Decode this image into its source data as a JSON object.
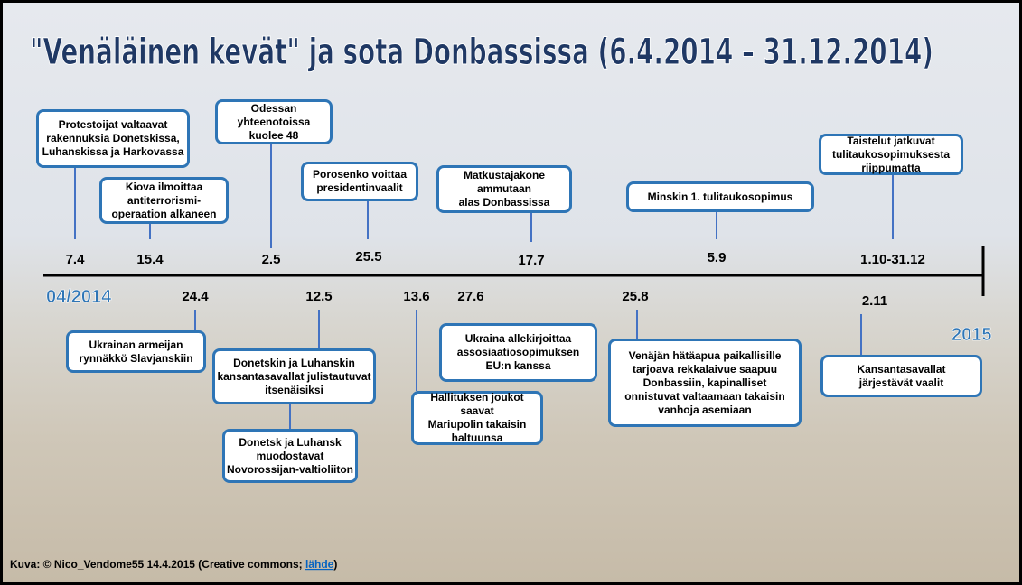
{
  "title": "\"Venäläinen kevät\" ja sota Donbassissa (6.4.2014 – 31.12.2014)",
  "timeline": {
    "start_label": "04/2014",
    "end_label": "2015"
  },
  "events": [
    {
      "date": "7.4",
      "text": [
        "Protestoijat valtaavat",
        "rakennuksia Donetskissa,",
        "Luhanskissa ja Harkovassa"
      ]
    },
    {
      "date": "15.4",
      "text": [
        "Kiova ilmoittaa",
        "antiterrorismi-",
        "operaation alkaneen"
      ]
    },
    {
      "date": "24.4",
      "text": [
        "Ukrainan armeijan",
        "rynnäkkö Slavjanskiin"
      ]
    },
    {
      "date": "2.5",
      "text": [
        "Odessan yhteenotoissa",
        "kuolee 48"
      ]
    },
    {
      "date": "12.5",
      "text": [
        "Donetskin ja Luhanskin",
        "kansantasavallat julistautuvat",
        "itsenäisiksi"
      ],
      "extra": [
        "Donetsk ja Luhansk",
        "muodostavat",
        "Novorossijan-valtioliiton"
      ]
    },
    {
      "date": "25.5",
      "text": [
        "Porosenko voittaa",
        "presidentinvaalit"
      ]
    },
    {
      "date": "13.6",
      "text": [
        "Hallituksen joukot saavat",
        "Mariupolin takaisin",
        "haltuunsa"
      ]
    },
    {
      "date": "27.6",
      "text": [
        "Ukraina allekirjoittaa",
        "assosiaatiosopimuksen",
        "EU:n kanssa"
      ]
    },
    {
      "date": "17.7",
      "text": [
        "Matkustajakone ammutaan",
        "alas Donbassissa"
      ]
    },
    {
      "date": "25.8",
      "text": [
        "Venäjän hätäapua paikallisille",
        "tarjoava rekkalaivue saapuu",
        "Donbassiin, kapinalliset",
        "onnistuvat valtaamaan takaisin",
        "vanhoja asemiaan"
      ]
    },
    {
      "date": "5.9",
      "text": [
        "Minskin 1. tulitaukosopimus"
      ]
    },
    {
      "date": "1.10-31.12",
      "text": [
        "Taistelut jatkuvat",
        "tulitaukosopimuksesta",
        "riippumatta"
      ]
    },
    {
      "date": "2.11",
      "text": [
        "Kansantasavallat",
        "järjestävät vaalit"
      ]
    }
  ],
  "credit": {
    "prefix": "Kuva: © Nico_Vendome55 14.4.2015 (Creative commons; ",
    "link": "lähde",
    "suffix": ")"
  }
}
